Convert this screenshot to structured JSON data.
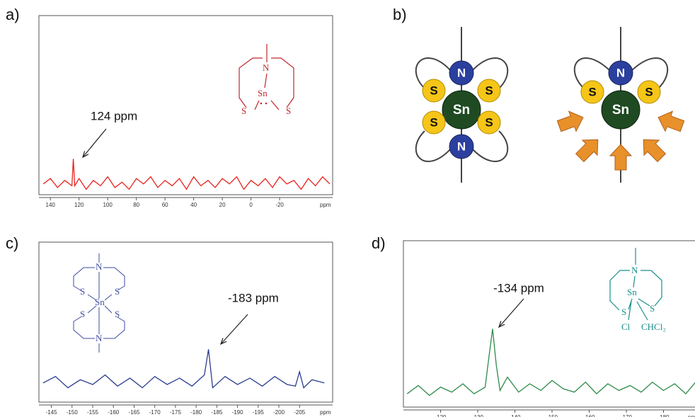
{
  "panels": [
    "a)",
    "b)",
    "c)",
    "d)"
  ],
  "chart_data": [
    {
      "type": "line",
      "color": "#e8231f",
      "x": [
        145,
        140,
        135,
        130,
        125,
        124,
        123,
        120,
        115,
        110,
        105,
        100,
        95,
        90,
        85,
        80,
        75,
        70,
        65,
        60,
        55,
        50,
        45,
        40,
        35,
        30,
        25,
        20,
        15,
        10,
        5,
        0,
        -5,
        -10,
        -15,
        -20,
        -25,
        -30,
        -35,
        -40,
        -45,
        -50,
        -55
      ],
      "values": [
        6,
        9,
        4,
        8,
        5,
        20,
        5,
        9,
        3,
        8,
        5,
        10,
        4,
        7,
        3,
        9,
        6,
        10,
        4,
        8,
        5,
        9,
        3,
        10,
        5,
        8,
        4,
        9,
        6,
        10,
        3,
        8,
        5,
        9,
        4,
        10,
        6,
        8,
        3,
        9,
        5,
        10,
        6
      ],
      "xlim": [
        148,
        -57
      ],
      "ylim": [
        0,
        100
      ],
      "xticks": [
        140,
        120,
        100,
        80,
        60,
        40,
        20,
        0,
        -20
      ],
      "x_unit_label": "ppm",
      "annotation": "124 ppm",
      "structure_labels": [
        "N",
        "Sn",
        "S",
        "S"
      ]
    },
    {
      "type": "line",
      "color": "#2b3d8f",
      "x": [
        -143,
        -146,
        -149,
        -152,
        -155,
        -158,
        -161,
        -164,
        -167,
        -170,
        -173,
        -176,
        -179,
        -182,
        -183,
        -184,
        -187,
        -190,
        -193,
        -196,
        -199,
        -202,
        -204,
        -205,
        -206,
        -208,
        -211
      ],
      "values": [
        12,
        16,
        9,
        14,
        11,
        17,
        10,
        15,
        9,
        16,
        11,
        15,
        10,
        17,
        33,
        9,
        16,
        11,
        15,
        10,
        16,
        11,
        10,
        19,
        9,
        14,
        12
      ],
      "xlim": [
        -142,
        -213
      ],
      "ylim": [
        0,
        100
      ],
      "xticks": [
        -145,
        -150,
        -155,
        -160,
        -165,
        -170,
        -175,
        -180,
        -185,
        -190,
        -195,
        -200,
        -205
      ],
      "x_unit_label": "ppm",
      "annotation": "-183 ppm",
      "structure_labels": [
        "N",
        "S",
        "S",
        "Sn",
        "S",
        "S",
        "N"
      ]
    },
    {
      "type": "line",
      "color": "#2e8b4a",
      "x": [
        -111,
        -114,
        -117,
        -120,
        -123,
        -126,
        -129,
        -132,
        -133,
        -134,
        -135,
        -136,
        -138,
        -141,
        -144,
        -147,
        -150,
        -153,
        -156,
        -159,
        -162,
        -165,
        -168,
        -171,
        -174,
        -177,
        -180,
        -183,
        -186,
        -189
      ],
      "values": [
        8,
        13,
        7,
        12,
        9,
        14,
        8,
        12,
        30,
        47,
        25,
        10,
        18,
        9,
        14,
        10,
        16,
        11,
        9,
        15,
        8,
        14,
        10,
        13,
        9,
        15,
        10,
        14,
        8,
        16
      ],
      "xlim": [
        -110,
        -190
      ],
      "ylim": [
        0,
        100
      ],
      "xticks": [
        -120,
        -130,
        -140,
        -150,
        -160,
        -170,
        -180
      ],
      "x_unit_label": "ppm",
      "annotation": "-134 ppm",
      "structure_labels": [
        "N",
        "Sn",
        "S",
        "S",
        "Cl",
        "CHCl₂"
      ]
    }
  ],
  "diagram": {
    "left": [
      "N",
      "S",
      "S",
      "Sn",
      "S",
      "S",
      "N"
    ],
    "right": [
      "N",
      "S",
      "Sn",
      "S"
    ]
  }
}
